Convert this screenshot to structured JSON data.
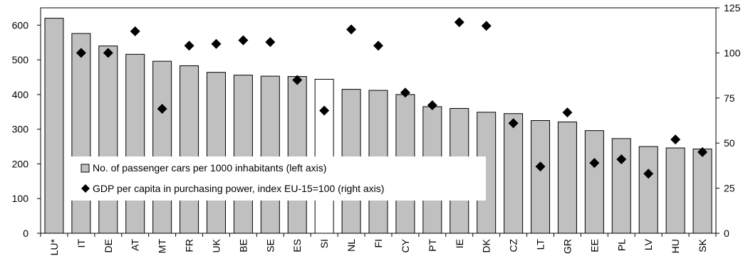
{
  "chart_data": {
    "type": "bar",
    "categories": [
      "LU*",
      "IT",
      "DE",
      "AT",
      "MT",
      "FR",
      "UK",
      "BE",
      "SE",
      "ES",
      "SI",
      "NL",
      "FI",
      "CY",
      "PT",
      "IE",
      "DK",
      "CZ",
      "LT",
      "GR",
      "EE",
      "PL",
      "LV",
      "HU",
      "SK"
    ],
    "highlight_category": "SI",
    "series": [
      {
        "name": "No. of passenger cars per 1000 inhabitants (left axis)",
        "type": "bar",
        "axis": "left",
        "values": [
          620,
          576,
          540,
          516,
          496,
          483,
          464,
          456,
          453,
          452,
          444,
          415,
          412,
          400,
          365,
          360,
          349,
          345,
          325,
          321,
          296,
          273,
          250,
          246,
          243
        ]
      },
      {
        "name": "GDP per capita in purchasing power, index EU-15=100 (right axis)",
        "type": "scatter",
        "marker": "diamond",
        "axis": "right",
        "values": [
          null,
          100,
          100,
          112,
          69,
          104,
          105,
          107,
          106,
          85,
          68,
          113,
          104,
          78,
          71,
          117,
          115,
          61,
          37,
          67,
          39,
          41,
          33,
          52,
          45
        ]
      }
    ],
    "ylim_left": [
      0,
      650
    ],
    "yticks_left": [
      0,
      100,
      200,
      300,
      400,
      500,
      600
    ],
    "ylim_right": [
      0,
      125
    ],
    "yticks_right": [
      0,
      25,
      50,
      75,
      100,
      125
    ],
    "legend_placement": "lower-left inside plot",
    "grid": false,
    "colors": {
      "bar_fill": "#c0c0c0",
      "highlight_fill": "#ffffff",
      "bar_stroke": "#000000",
      "marker": "#000000"
    }
  }
}
